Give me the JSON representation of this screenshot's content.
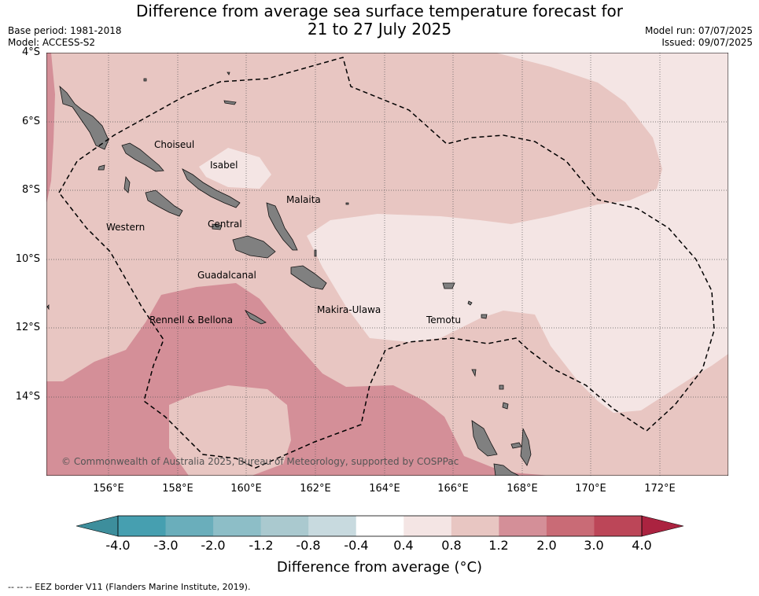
{
  "title_line1": "Difference from average sea surface temperature forecast for",
  "title_line2": "21 to 27 July 2025",
  "base_period": "Base period: 1981-2018",
  "model": "Model: ACCESS-S2",
  "model_run": "Model run: 07/07/2025",
  "issued": "Issued: 09/07/2025",
  "lat_labels": [
    "4°S",
    "6°S",
    "8°S",
    "10°S",
    "12°S",
    "14°S"
  ],
  "lon_labels": [
    "156°E",
    "158°E",
    "160°E",
    "162°E",
    "164°E",
    "166°E",
    "168°E",
    "170°E",
    "172°E"
  ],
  "places": {
    "choiseul": "Choiseul",
    "isabel": "Isabel",
    "malaita": "Malaita",
    "western": "Western",
    "central": "Central",
    "guadalcanal": "Guadalcanal",
    "makira": "Makira-Ulawa",
    "temotu": "Temotu",
    "rennell": "Rennell & Bellona"
  },
  "copyright": "© Commonwealth of Australia 2025, Bureau of Meteorology, supported by COSPPac",
  "colorbar": {
    "ticks": [
      "-4.0",
      "-3.0",
      "-2.0",
      "-1.2",
      "-0.8",
      "-0.4",
      "0.4",
      "0.8",
      "1.2",
      "2.0",
      "3.0",
      "4.0"
    ],
    "colors": [
      "#469fb0",
      "#6aaebb",
      "#8dbec7",
      "#aac9cf",
      "#c8dadf",
      "#ffffff",
      "#f4e5e4",
      "#e8c6c2",
      "#d48f98",
      "#c96b76",
      "#bc4658"
    ],
    "under_color": "#3d8e9c",
    "over_color": "#ab2340",
    "label": "Difference from average (°C)"
  },
  "eez_note": "-- -- -- EEZ border V11 (Flanders Marine Institute, 2019).",
  "map_colors": {
    "land": "#808080",
    "band_0p4_0p8": "#f4e5e4",
    "band_0p8_1p2": "#e8c6c2",
    "band_1p2_2p0": "#d48f98"
  }
}
